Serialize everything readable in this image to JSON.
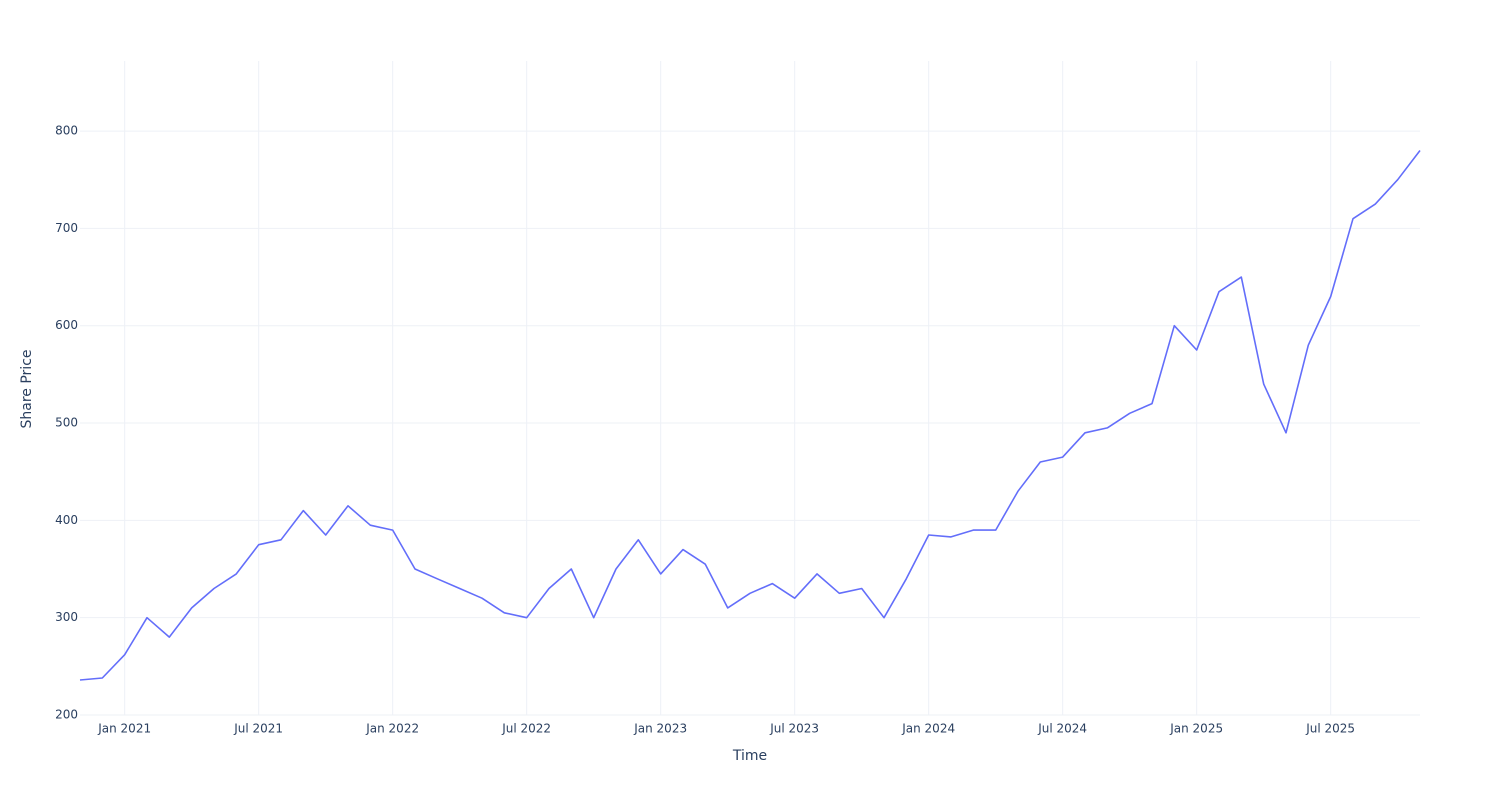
{
  "chart_data": {
    "type": "line",
    "x_label": "Time",
    "y_label": "Share Price",
    "x": [
      "2020-11",
      "2020-12",
      "2021-01",
      "2021-02",
      "2021-03",
      "2021-04",
      "2021-05",
      "2021-06",
      "2021-07",
      "2021-08",
      "2021-09",
      "2021-10",
      "2021-11",
      "2021-12",
      "2022-01",
      "2022-02",
      "2022-03",
      "2022-04",
      "2022-05",
      "2022-06",
      "2022-07",
      "2022-08",
      "2022-09",
      "2022-10",
      "2022-11",
      "2022-12",
      "2023-01",
      "2023-02",
      "2023-03",
      "2023-04",
      "2023-05",
      "2023-06",
      "2023-07",
      "2023-08",
      "2023-09",
      "2023-10",
      "2023-11",
      "2023-12",
      "2024-01",
      "2024-02",
      "2024-03",
      "2024-04",
      "2024-05",
      "2024-06",
      "2024-07",
      "2024-08",
      "2024-09",
      "2024-10",
      "2024-11",
      "2024-12",
      "2025-01",
      "2025-02",
      "2025-03",
      "2025-04",
      "2025-05",
      "2025-06",
      "2025-07",
      "2025-08",
      "2025-09",
      "2025-10",
      "2025-11"
    ],
    "series": [
      {
        "color": "#636efa",
        "values": [
          236,
          238,
          262,
          300,
          280,
          310,
          330,
          345,
          375,
          380,
          410,
          385,
          415,
          395,
          390,
          350,
          340,
          330,
          320,
          305,
          300,
          330,
          350,
          300,
          350,
          380,
          345,
          370,
          355,
          310,
          325,
          335,
          320,
          345,
          325,
          330,
          300,
          340,
          385,
          383,
          390,
          390,
          430,
          460,
          465,
          490,
          495,
          510,
          520,
          600,
          575,
          635,
          650,
          540,
          490,
          580,
          630,
          710,
          725,
          750,
          780
        ]
      }
    ],
    "xlim": [
      "2020-11",
      "2025-11"
    ],
    "xticks": [
      {
        "value": "2021-01",
        "label": "Jan 2021"
      },
      {
        "value": "2021-07",
        "label": "Jul 2021"
      },
      {
        "value": "2022-01",
        "label": "Jan 2022"
      },
      {
        "value": "2022-07",
        "label": "Jul 2022"
      },
      {
        "value": "2023-01",
        "label": "Jan 2023"
      },
      {
        "value": "2023-07",
        "label": "Jul 2023"
      },
      {
        "value": "2024-01",
        "label": "Jan 2024"
      },
      {
        "value": "2024-07",
        "label": "Jul 2024"
      },
      {
        "value": "2025-01",
        "label": "Jan 2025"
      },
      {
        "value": "2025-07",
        "label": "Jul 2025"
      }
    ],
    "ylim": [
      200,
      872
    ],
    "yticks": [
      200,
      300,
      400,
      500,
      600,
      700,
      800
    ],
    "grid": true
  }
}
